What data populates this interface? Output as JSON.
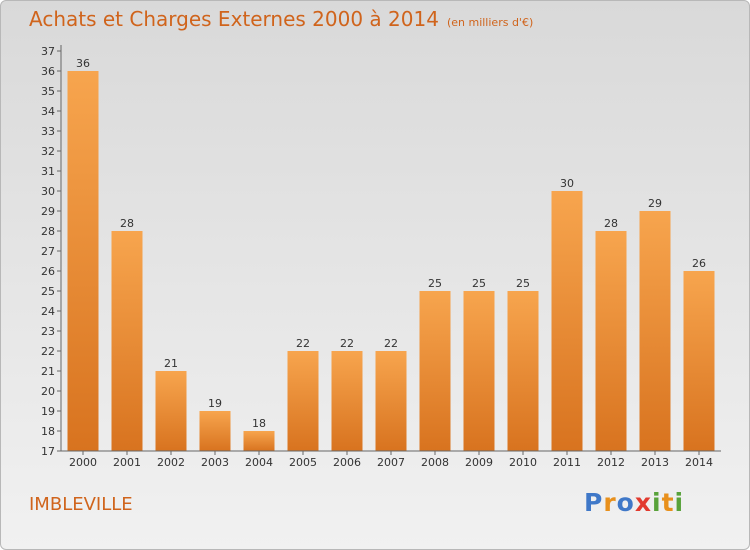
{
  "header": {
    "title": "Achats et Charges Externes 2000 à 2014",
    "subtitle": "(en milliers d'€)"
  },
  "footer": {
    "commune": "IMBLEVILLE",
    "logo": [
      "P",
      "r",
      "o",
      "x",
      "i",
      "t",
      "i"
    ]
  },
  "colors": {
    "accent": "#d0641c",
    "bar_top": "#f7a54e",
    "bar_bottom": "#d8731f",
    "logo": [
      "#3f78c8",
      "#e8901c",
      "#3f78c8",
      "#e23a2e",
      "#58a23a",
      "#e8901c",
      "#58a23a"
    ]
  },
  "chart_data": {
    "type": "bar",
    "title": "Achats et Charges Externes 2000 à 2014",
    "subtitle": "(en milliers d'€)",
    "categories": [
      "2000",
      "2001",
      "2002",
      "2003",
      "2004",
      "2005",
      "2006",
      "2007",
      "2008",
      "2009",
      "2010",
      "2011",
      "2012",
      "2013",
      "2014"
    ],
    "values": [
      36,
      28,
      21,
      19,
      18,
      22,
      22,
      22,
      25,
      25,
      25,
      30,
      28,
      29,
      26
    ],
    "ylim": [
      17,
      37
    ],
    "yticks": [
      17,
      18,
      19,
      20,
      21,
      22,
      23,
      24,
      25,
      26,
      27,
      28,
      29,
      30,
      31,
      32,
      33,
      34,
      35,
      36,
      37
    ],
    "grid": false,
    "legend": "none"
  }
}
